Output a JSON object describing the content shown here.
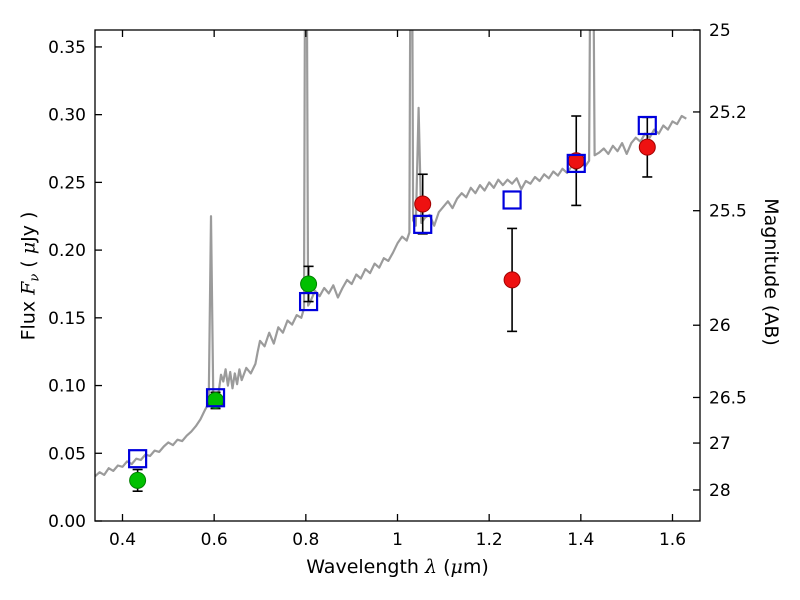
{
  "chart_data": {
    "type": "line",
    "title": "",
    "xlabel_parts": [
      "Wavelength  ",
      "λ",
      " (",
      "μ",
      "m)"
    ],
    "ylabel_left_parts": [
      "Flux  ",
      "F",
      "ν",
      "  ( ",
      "μ",
      "Jy )"
    ],
    "ylabel_right": "Magnitude (AB)",
    "xlim": [
      0.34,
      1.66
    ],
    "ylim": [
      0.0,
      0.3625
    ],
    "x_ticks": [
      0.4,
      0.6,
      0.8,
      1.0,
      1.2,
      1.4,
      1.6
    ],
    "x_tick_labels": [
      "0.4",
      "0.6",
      "0.8",
      "1",
      "1.2",
      "1.4",
      "1.6"
    ],
    "y_ticks_left": [
      0.0,
      0.05,
      0.1,
      0.15,
      0.2,
      0.25,
      0.3,
      0.35
    ],
    "y_tick_labels_left": [
      "0.00",
      "0.05",
      "0.10",
      "0.15",
      "0.20",
      "0.25",
      "0.30",
      "0.35"
    ],
    "right_tick_mags": [
      25,
      25.2,
      25.5,
      26,
      26.5,
      27,
      28
    ],
    "right_tick_labels": [
      "25",
      "25.2",
      "25.5",
      "26",
      "26.5",
      "27",
      "28"
    ],
    "ab_zeropoint": 23.9,
    "grid": false,
    "legend": null,
    "series": [
      {
        "name": "model-spectrum",
        "kind": "line",
        "color": "#9b9b9b",
        "width": 2.2,
        "points": [
          [
            0.34,
            0.033
          ],
          [
            0.35,
            0.036
          ],
          [
            0.36,
            0.034
          ],
          [
            0.37,
            0.039
          ],
          [
            0.38,
            0.037
          ],
          [
            0.39,
            0.041
          ],
          [
            0.4,
            0.04
          ],
          [
            0.41,
            0.044
          ],
          [
            0.42,
            0.042
          ],
          [
            0.43,
            0.046
          ],
          [
            0.44,
            0.045
          ],
          [
            0.45,
            0.049
          ],
          [
            0.46,
            0.048
          ],
          [
            0.47,
            0.052
          ],
          [
            0.48,
            0.051
          ],
          [
            0.49,
            0.055
          ],
          [
            0.5,
            0.058
          ],
          [
            0.51,
            0.056
          ],
          [
            0.52,
            0.06
          ],
          [
            0.53,
            0.059
          ],
          [
            0.54,
            0.063
          ],
          [
            0.55,
            0.066
          ],
          [
            0.56,
            0.07
          ],
          [
            0.57,
            0.075
          ],
          [
            0.58,
            0.082
          ],
          [
            0.588,
            0.087
          ],
          [
            0.593,
            0.225
          ],
          [
            0.598,
            0.09
          ],
          [
            0.603,
            0.089
          ],
          [
            0.61,
            0.096
          ],
          [
            0.615,
            0.108
          ],
          [
            0.62,
            0.103
          ],
          [
            0.625,
            0.112
          ],
          [
            0.63,
            0.1
          ],
          [
            0.635,
            0.11
          ],
          [
            0.64,
            0.098
          ],
          [
            0.645,
            0.109
          ],
          [
            0.65,
            0.101
          ],
          [
            0.655,
            0.112
          ],
          [
            0.66,
            0.104
          ],
          [
            0.67,
            0.113
          ],
          [
            0.68,
            0.109
          ],
          [
            0.69,
            0.116
          ],
          [
            0.695,
            0.125
          ],
          [
            0.7,
            0.133
          ],
          [
            0.71,
            0.129
          ],
          [
            0.72,
            0.139
          ],
          [
            0.73,
            0.131
          ],
          [
            0.74,
            0.143
          ],
          [
            0.75,
            0.139
          ],
          [
            0.76,
            0.148
          ],
          [
            0.77,
            0.145
          ],
          [
            0.78,
            0.152
          ],
          [
            0.79,
            0.15
          ],
          [
            0.796,
            0.157
          ],
          [
            0.8,
            0.6
          ],
          [
            0.805,
            0.159
          ],
          [
            0.81,
            0.162
          ],
          [
            0.82,
            0.17
          ],
          [
            0.83,
            0.166
          ],
          [
            0.84,
            0.172
          ],
          [
            0.85,
            0.168
          ],
          [
            0.86,
            0.174
          ],
          [
            0.87,
            0.165
          ],
          [
            0.88,
            0.172
          ],
          [
            0.89,
            0.178
          ],
          [
            0.9,
            0.175
          ],
          [
            0.91,
            0.182
          ],
          [
            0.92,
            0.179
          ],
          [
            0.93,
            0.186
          ],
          [
            0.94,
            0.183
          ],
          [
            0.95,
            0.19
          ],
          [
            0.96,
            0.187
          ],
          [
            0.97,
            0.194
          ],
          [
            0.98,
            0.192
          ],
          [
            0.99,
            0.198
          ],
          [
            1.0,
            0.205
          ],
          [
            1.01,
            0.21
          ],
          [
            1.02,
            0.207
          ],
          [
            1.026,
            0.213
          ],
          [
            1.03,
            0.6
          ],
          [
            1.034,
            0.222
          ],
          [
            1.04,
            0.218
          ],
          [
            1.046,
            0.305
          ],
          [
            1.052,
            0.22
          ],
          [
            1.06,
            0.224
          ],
          [
            1.07,
            0.226
          ],
          [
            1.08,
            0.218
          ],
          [
            1.09,
            0.228
          ],
          [
            1.1,
            0.232
          ],
          [
            1.11,
            0.236
          ],
          [
            1.12,
            0.231
          ],
          [
            1.13,
            0.238
          ],
          [
            1.14,
            0.242
          ],
          [
            1.15,
            0.239
          ],
          [
            1.16,
            0.246
          ],
          [
            1.17,
            0.242
          ],
          [
            1.18,
            0.248
          ],
          [
            1.19,
            0.244
          ],
          [
            1.2,
            0.25
          ],
          [
            1.21,
            0.246
          ],
          [
            1.22,
            0.252
          ],
          [
            1.23,
            0.248
          ],
          [
            1.24,
            0.252
          ],
          [
            1.25,
            0.249
          ],
          [
            1.26,
            0.253
          ],
          [
            1.27,
            0.245
          ],
          [
            1.28,
            0.251
          ],
          [
            1.29,
            0.249
          ],
          [
            1.3,
            0.254
          ],
          [
            1.31,
            0.251
          ],
          [
            1.32,
            0.256
          ],
          [
            1.33,
            0.253
          ],
          [
            1.34,
            0.258
          ],
          [
            1.35,
            0.255
          ],
          [
            1.36,
            0.26
          ],
          [
            1.37,
            0.257
          ],
          [
            1.38,
            0.262
          ],
          [
            1.39,
            0.259
          ],
          [
            1.4,
            0.264
          ],
          [
            1.41,
            0.262
          ],
          [
            1.418,
            0.266
          ],
          [
            1.424,
            0.6
          ],
          [
            1.43,
            0.27
          ],
          [
            1.44,
            0.272
          ],
          [
            1.45,
            0.275
          ],
          [
            1.46,
            0.271
          ],
          [
            1.47,
            0.277
          ],
          [
            1.48,
            0.273
          ],
          [
            1.49,
            0.279
          ],
          [
            1.5,
            0.271
          ],
          [
            1.51,
            0.279
          ],
          [
            1.52,
            0.283
          ],
          [
            1.53,
            0.28
          ],
          [
            1.54,
            0.286
          ],
          [
            1.55,
            0.283
          ],
          [
            1.56,
            0.289
          ],
          [
            1.57,
            0.286
          ],
          [
            1.58,
            0.292
          ],
          [
            1.59,
            0.289
          ],
          [
            1.6,
            0.295
          ],
          [
            1.61,
            0.293
          ],
          [
            1.62,
            0.299
          ],
          [
            1.63,
            0.297
          ]
        ]
      },
      {
        "name": "observed-optical-photometry",
        "kind": "scatter",
        "marker": "circle",
        "color": "#00c000",
        "edge": "#008000",
        "err_color": "#000000",
        "points": [
          {
            "x": 0.433,
            "y": 0.03,
            "yerr": 0.008
          },
          {
            "x": 0.603,
            "y": 0.089,
            "yerr": 0.006
          },
          {
            "x": 0.806,
            "y": 0.175,
            "yerr": 0.013
          }
        ]
      },
      {
        "name": "observed-infrared-photometry",
        "kind": "scatter",
        "marker": "circle",
        "color": "#ee1111",
        "edge": "#a00000",
        "err_color": "#000000",
        "points": [
          {
            "x": 1.055,
            "y": 0.234,
            "yerr": 0.022
          },
          {
            "x": 1.25,
            "y": 0.178,
            "yerr": 0.038
          },
          {
            "x": 1.39,
            "y": 0.266,
            "yerr": 0.033
          },
          {
            "x": 1.545,
            "y": 0.276,
            "yerr": 0.022
          }
        ]
      },
      {
        "name": "model-synthetic-photometry",
        "kind": "scatter",
        "marker": "square-open",
        "color": "#0000dd",
        "points": [
          {
            "x": 0.433,
            "y": 0.046
          },
          {
            "x": 0.603,
            "y": 0.091
          },
          {
            "x": 0.806,
            "y": 0.162
          },
          {
            "x": 1.055,
            "y": 0.219
          },
          {
            "x": 1.25,
            "y": 0.237
          },
          {
            "x": 1.39,
            "y": 0.264
          },
          {
            "x": 1.545,
            "y": 0.292
          }
        ]
      }
    ]
  }
}
